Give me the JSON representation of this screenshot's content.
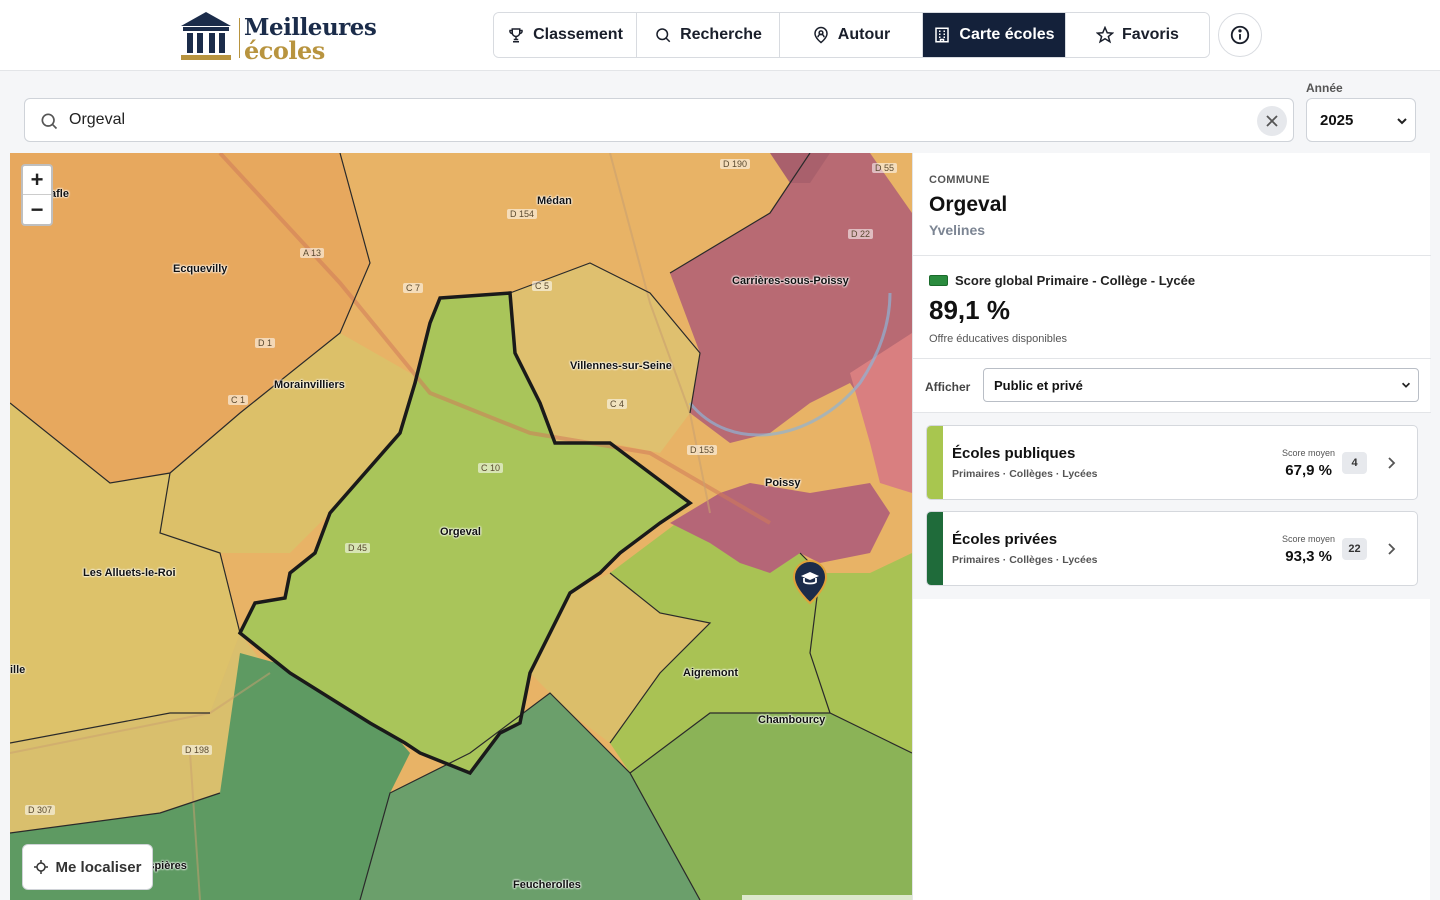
{
  "header": {
    "logo": {
      "line1": "Meilleures",
      "line2": "écoles"
    },
    "nav": [
      {
        "label": "Classement",
        "icon": "trophy-icon",
        "active": false
      },
      {
        "label": "Recherche",
        "icon": "search-icon",
        "active": false
      },
      {
        "label": "Autour",
        "icon": "location-user-icon",
        "active": false
      },
      {
        "label": "Carte écoles",
        "icon": "school-building-icon",
        "active": true
      },
      {
        "label": "Favoris",
        "icon": "star-icon",
        "active": false
      }
    ],
    "info_icon": "info-icon"
  },
  "search": {
    "value": "Orgeval",
    "clear_icon": "close-icon"
  },
  "year": {
    "label": "Année",
    "value": "2025"
  },
  "map": {
    "zoom_in": "+",
    "zoom_out": "−",
    "locate_label": "Me localiser",
    "places": {
      "medan": "Médan",
      "ecquevilly": "Ecquevilly",
      "carrieres": "Carrières-sous-Poissy",
      "morainvilliers": "Morainvilliers",
      "villennes": "Villennes-sur-Seine",
      "poissy": "Poissy",
      "orgeval": "Orgeval",
      "alluets": "Les Alluets-le-Roi",
      "aigremont": "Aigremont",
      "chambourcy": "Chambourcy",
      "feucherolles": "Feucherolles",
      "crespieres": "Crespières",
      "afle": "afle",
      "ille": "ille"
    },
    "roads": {
      "d190": "D 190",
      "d55": "D 55",
      "d154": "D 154",
      "d22": "D 22",
      "a13": "A 13",
      "c7": "C 7",
      "c5": "C 5",
      "d1": "D 1",
      "c1": "C 1",
      "c4": "C 4",
      "d153": "D 153",
      "c10": "C 10",
      "d45": "D 45",
      "d198": "D 198",
      "d307": "D 307"
    }
  },
  "panel": {
    "kicker": "COMMUNE",
    "commune": "Orgeval",
    "department": "Yvelines",
    "score_title": "Score global Primaire - Collège - Lycée",
    "score_value": "89,1 %",
    "score_sub": "Offre éducatives disponibles",
    "afficher_label": "Afficher",
    "afficher_value": "Public et privé",
    "colors": {
      "swatch": "#2a8b3e",
      "public_bar": "#a8c64f",
      "private_bar": "#1f6b3a"
    },
    "cards": [
      {
        "title": "Écoles publiques",
        "sub": "Primaires · Collèges · Lycées",
        "score_label": "Score moyen",
        "score": "67,9 %",
        "count": "4"
      },
      {
        "title": "Écoles privées",
        "sub": "Primaires · Collèges · Lycées",
        "score_label": "Score moyen",
        "score": "93,3 %",
        "count": "22"
      }
    ]
  }
}
